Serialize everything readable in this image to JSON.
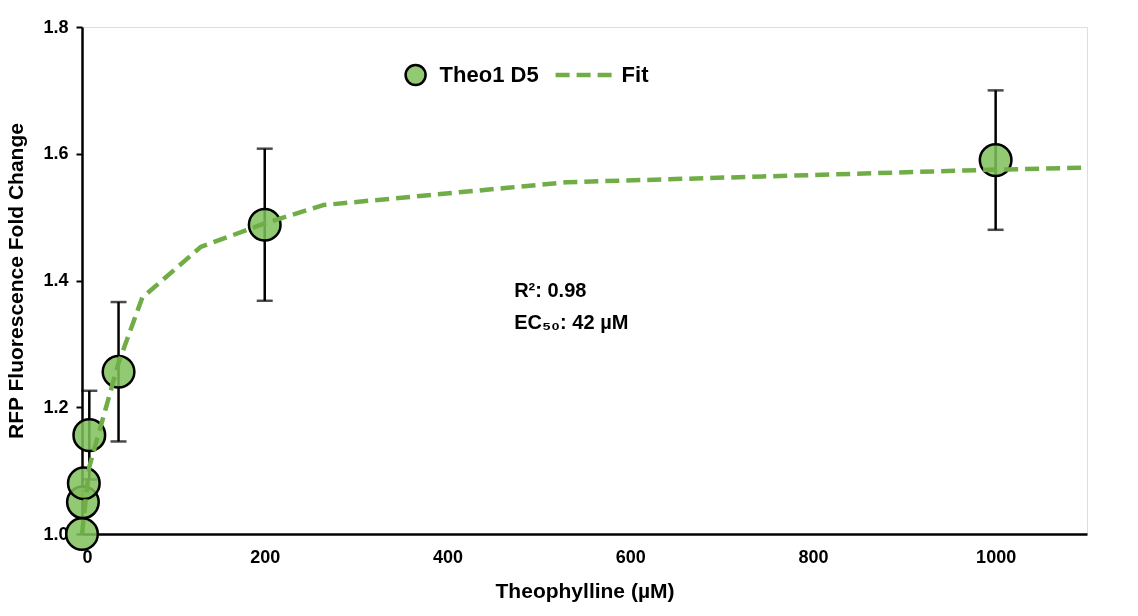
{
  "chart_data": {
    "type": "scatter",
    "xlabel": "Theophylline (µM)",
    "ylabel": "RFP Fluorescence Fold Change",
    "xlim": [
      0,
      1100
    ],
    "xticks": [
      0,
      200,
      400,
      600,
      800,
      1000
    ],
    "ylim": [
      1.0,
      1.8
    ],
    "yticks": [
      {
        "value": 1.0,
        "label": "1.0"
      },
      {
        "value": 1.2,
        "label": "1.2"
      },
      {
        "value": 1.4,
        "label": "1.4"
      },
      {
        "value": 1.6,
        "label": "1.6"
      },
      {
        "value": 1.8,
        "label": "1.8"
      }
    ],
    "grid": false,
    "legend": "top",
    "series": [
      {
        "name": "Theo1 D5",
        "color": "#7fbf5a",
        "marker": "circle",
        "x": [
          0,
          1,
          2,
          8,
          40,
          200,
          1000
        ],
        "values": [
          1.0,
          1.05,
          1.08,
          1.156,
          1.256,
          1.488,
          1.59
        ],
        "errors": [
          null,
          null,
          null,
          0.07,
          0.11,
          0.12,
          0.11
        ]
      },
      {
        "name": "Fit",
        "type": "line",
        "color": "#70ad47",
        "line_style": "dashed",
        "marker": "none",
        "x": [
          0,
          8,
          40,
          66,
          130,
          200,
          264,
          530,
          1000,
          1100
        ],
        "values": [
          1.0,
          1.106,
          1.27,
          1.373,
          1.453,
          1.49,
          1.519,
          1.555,
          1.575,
          1.578
        ]
      }
    ],
    "annotations": [
      "R²: 0.98",
      "EC₅₀: 42 µM"
    ]
  }
}
